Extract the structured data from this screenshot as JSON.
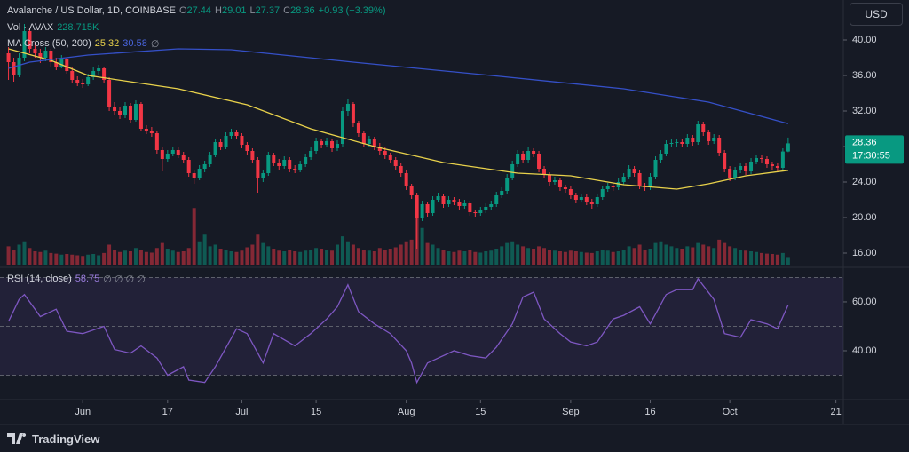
{
  "header": {
    "symbol": "Avalanche / US Dollar, 1D, COINBASE",
    "o": "O",
    "h": "H",
    "l": "L",
    "c": "C",
    "change": "+0.93 (+3.39%)",
    "volume_title": "Vol · AVAX",
    "volume": "228.715K",
    "ma_title": "MA Cross (50, 200)",
    "ma_empty": "∅",
    "rsi_title": "RSI (14, close)",
    "rsi_empty": "∅ ∅ ∅ ∅",
    "currency": "USD",
    "countdown": "17:30:55",
    "brand": "TradingView"
  },
  "chart_data": {
    "type": "candlestick",
    "up_color": "#089981",
    "down_color": "#f23645",
    "xlim": [
      -1.6,
      157.4
    ],
    "xticks": [
      {
        "value": 14,
        "label": "Jun"
      },
      {
        "value": 30,
        "label": "17"
      },
      {
        "value": 44,
        "label": "Jul"
      },
      {
        "value": 58,
        "label": "15"
      },
      {
        "value": 75,
        "label": "Aug"
      },
      {
        "value": 89,
        "label": "15"
      },
      {
        "value": 106,
        "label": "Sep"
      },
      {
        "value": 121,
        "label": "16"
      },
      {
        "value": 136,
        "label": "Oct"
      },
      {
        "value": 156,
        "label": "21"
      }
    ],
    "ylim": [
      14.5,
      44.5
    ],
    "yticks": [
      {
        "value": 40,
        "label": "40.00"
      },
      {
        "value": 36,
        "label": "36.00"
      },
      {
        "value": 32,
        "label": "32.00"
      },
      {
        "value": 28,
        "label": "28.00"
      },
      {
        "value": 24,
        "label": "24.00"
      },
      {
        "value": 20,
        "label": "20.00"
      },
      {
        "value": 16,
        "label": "16.00"
      }
    ],
    "candles": [
      [
        38.5,
        39.2,
        35.5,
        37.5
      ],
      [
        37.5,
        38,
        35.3,
        36
      ],
      [
        36,
        38.5,
        35.8,
        38
      ],
      [
        38,
        41.8,
        37.6,
        41
      ],
      [
        41,
        41.3,
        38.5,
        39
      ],
      [
        39,
        39.8,
        38,
        38.5
      ],
      [
        38.5,
        39,
        37.4,
        38
      ],
      [
        38,
        39.2,
        37.6,
        38.8
      ],
      [
        38.8,
        39,
        37,
        37.5
      ],
      [
        37.5,
        38,
        36.6,
        37
      ],
      [
        37,
        38.3,
        36.8,
        37.8
      ],
      [
        37.8,
        38,
        36.2,
        36.5
      ],
      [
        36.5,
        36.9,
        35.1,
        35.5
      ],
      [
        35.5,
        35.9,
        34.8,
        35.2
      ],
      [
        35.2,
        35.6,
        34.6,
        35
      ],
      [
        35,
        36.2,
        34.8,
        35.8
      ],
      [
        35.8,
        36.9,
        35.5,
        36.5
      ],
      [
        36.5,
        37.2,
        36.1,
        36.8
      ],
      [
        36.8,
        37,
        35.2,
        35.5
      ],
      [
        35.5,
        35.8,
        32,
        32.5
      ],
      [
        32.5,
        33,
        31.5,
        32
      ],
      [
        32,
        32.4,
        31.1,
        31.5
      ],
      [
        31.5,
        33,
        31.2,
        32.6
      ],
      [
        32.6,
        32.9,
        30.7,
        31
      ],
      [
        31,
        33.2,
        30.8,
        32.8
      ],
      [
        32.8,
        33,
        29.7,
        30
      ],
      [
        30,
        30.4,
        29.4,
        29.8
      ],
      [
        29.8,
        30.2,
        29.1,
        29.5
      ],
      [
        29.5,
        29.8,
        27.2,
        27.6
      ],
      [
        27.6,
        28,
        25.2,
        26.6
      ],
      [
        26.6,
        27.6,
        26.3,
        27.2
      ],
      [
        27.2,
        28,
        26.9,
        27.6
      ],
      [
        27.6,
        27.9,
        26.7,
        27.1
      ],
      [
        27.1,
        27.4,
        26.1,
        26.5
      ],
      [
        26.5,
        26.8,
        24.6,
        25
      ],
      [
        25,
        25.4,
        23.8,
        24.5
      ],
      [
        24.5,
        25.9,
        24.2,
        25.5
      ],
      [
        25.5,
        26.4,
        25.1,
        26
      ],
      [
        26,
        27.4,
        25.7,
        27
      ],
      [
        27,
        28.9,
        26.8,
        28.5
      ],
      [
        28.5,
        28.9,
        27.6,
        28
      ],
      [
        28,
        29.6,
        27.7,
        29.2
      ],
      [
        29.2,
        30,
        28.9,
        29.6
      ],
      [
        29.6,
        29.9,
        28.8,
        29.2
      ],
      [
        29.2,
        29.5,
        27.8,
        28.2
      ],
      [
        28.2,
        28.5,
        27.1,
        27.5
      ],
      [
        27.5,
        27.8,
        26.1,
        26.5
      ],
      [
        26.5,
        26.8,
        22.8,
        24.5
      ],
      [
        24.5,
        25.4,
        24,
        25
      ],
      [
        25,
        27.4,
        24.7,
        27
      ],
      [
        27,
        27.3,
        25.8,
        26.2
      ],
      [
        26.2,
        26.6,
        25.4,
        25.8
      ],
      [
        25.8,
        26.9,
        25.5,
        26.5
      ],
      [
        26.5,
        26.8,
        25.1,
        25.5
      ],
      [
        25.5,
        25.9,
        25,
        25.4
      ],
      [
        25.4,
        26.4,
        25.1,
        26
      ],
      [
        26,
        27.2,
        25.7,
        26.8
      ],
      [
        26.8,
        27.9,
        26.5,
        27.5
      ],
      [
        27.5,
        29,
        27.2,
        28.6
      ],
      [
        28.6,
        28.9,
        27.8,
        28.2
      ],
      [
        28.2,
        29,
        27.9,
        28.6
      ],
      [
        28.6,
        28.9,
        27.4,
        27.8
      ],
      [
        27.8,
        28.7,
        27.5,
        28.3
      ],
      [
        28.3,
        32.5,
        28,
        32
      ],
      [
        32,
        33.3,
        31.4,
        32.8
      ],
      [
        32.8,
        33,
        30.2,
        30.6
      ],
      [
        30.6,
        30.9,
        29.1,
        29.5
      ],
      [
        29.5,
        29.8,
        27.9,
        28.3
      ],
      [
        28.3,
        29.2,
        28,
        28.8
      ],
      [
        28.8,
        29.1,
        27.6,
        28
      ],
      [
        28,
        28.4,
        27.1,
        27.5
      ],
      [
        27.5,
        27.9,
        26.6,
        27
      ],
      [
        27,
        27.3,
        26.1,
        26.5
      ],
      [
        26.5,
        26.8,
        25.4,
        25.8
      ],
      [
        25.8,
        26.1,
        24.6,
        25
      ],
      [
        25,
        25.3,
        23.1,
        23.5
      ],
      [
        23.5,
        23.8,
        22.1,
        22.5
      ],
      [
        22.5,
        22.8,
        16.5,
        20
      ],
      [
        20,
        21.9,
        19.6,
        21.5
      ],
      [
        21.5,
        21.8,
        20.1,
        20.5
      ],
      [
        20.5,
        22.4,
        20.2,
        22
      ],
      [
        22,
        22.8,
        21.7,
        22.4
      ],
      [
        22.4,
        22.7,
        21.1,
        21.5
      ],
      [
        21.5,
        22.4,
        21.2,
        22
      ],
      [
        22,
        22.3,
        21.4,
        21.8
      ],
      [
        21.8,
        22.1,
        20.9,
        21.3
      ],
      [
        21.3,
        22,
        21,
        21.6
      ],
      [
        21.6,
        21.9,
        20.2,
        20.6
      ],
      [
        20.6,
        20.9,
        20.1,
        20.5
      ],
      [
        20.5,
        21.2,
        20.2,
        20.8
      ],
      [
        20.8,
        21.6,
        20.5,
        21.2
      ],
      [
        21.2,
        21.9,
        20.9,
        21.5
      ],
      [
        21.5,
        22.9,
        21.2,
        22.5
      ],
      [
        22.5,
        23.4,
        22.2,
        23
      ],
      [
        23,
        24.9,
        22.7,
        24.5
      ],
      [
        24.5,
        26.4,
        24.2,
        26
      ],
      [
        26,
        27.6,
        25.7,
        27.2
      ],
      [
        27.2,
        27.5,
        26.1,
        26.5
      ],
      [
        26.5,
        28,
        26.2,
        27.5
      ],
      [
        27.5,
        27.8,
        26.8,
        27.2
      ],
      [
        27.2,
        27.5,
        25.1,
        25.5
      ],
      [
        25.5,
        25.8,
        24.4,
        24.8
      ],
      [
        24.8,
        25.1,
        23.6,
        24
      ],
      [
        24,
        24.6,
        23.7,
        24.2
      ],
      [
        24.2,
        24.5,
        23,
        23.4
      ],
      [
        23.4,
        23.7,
        22.8,
        23.2
      ],
      [
        23.2,
        23.5,
        22.1,
        22.5
      ],
      [
        22.5,
        22.8,
        21.6,
        22
      ],
      [
        22,
        22.7,
        21.7,
        22.3
      ],
      [
        22.3,
        22.6,
        21.4,
        21.8
      ],
      [
        21.8,
        22.1,
        21,
        21.5
      ],
      [
        21.5,
        22.7,
        21.2,
        22.3
      ],
      [
        22.3,
        23.6,
        22,
        23.2
      ],
      [
        23.2,
        23.9,
        22.9,
        23.5
      ],
      [
        23.5,
        23.8,
        23,
        23.4
      ],
      [
        23.4,
        24.4,
        23.1,
        24
      ],
      [
        24,
        25,
        23.7,
        24.6
      ],
      [
        24.6,
        25.9,
        24.3,
        25.5
      ],
      [
        25.5,
        25.8,
        24.6,
        25
      ],
      [
        25,
        25.3,
        23.2,
        23.6
      ],
      [
        23.6,
        23.9,
        23,
        23.4
      ],
      [
        23.4,
        25,
        23.1,
        24.6
      ],
      [
        24.6,
        26.9,
        24.3,
        26.5
      ],
      [
        26.5,
        27.6,
        26.2,
        27.2
      ],
      [
        27.2,
        28.7,
        26.9,
        28.3
      ],
      [
        28.3,
        28.8,
        27.9,
        28.4
      ],
      [
        28.4,
        28.9,
        28,
        28.5
      ],
      [
        28.5,
        28.8,
        27.9,
        28.3
      ],
      [
        28.3,
        29.4,
        28,
        29
      ],
      [
        29,
        29.3,
        28.1,
        28.5
      ],
      [
        28.5,
        30.9,
        28.2,
        30.5
      ],
      [
        30.5,
        30.8,
        29.2,
        29.6
      ],
      [
        29.6,
        29.9,
        28.2,
        28.6
      ],
      [
        28.6,
        29.4,
        28.3,
        29
      ],
      [
        29,
        29.3,
        26.9,
        27.3
      ],
      [
        27.3,
        27.6,
        25.1,
        25.5
      ],
      [
        25.5,
        25.8,
        24.1,
        24.5
      ],
      [
        24.5,
        25.7,
        24.2,
        25.3
      ],
      [
        25.3,
        26.2,
        25,
        25.8
      ],
      [
        25.8,
        26.1,
        24.8,
        25.2
      ],
      [
        25.2,
        26.7,
        24.9,
        26.3
      ],
      [
        26.3,
        27.1,
        26,
        26.7
      ],
      [
        26.7,
        27,
        26.2,
        26.6
      ],
      [
        26.6,
        26.9,
        25.6,
        26
      ],
      [
        26,
        26.3,
        25.4,
        25.8
      ],
      [
        25.8,
        26.1,
        25.2,
        25.6
      ],
      [
        25.6,
        27.8,
        25.3,
        27.44
      ],
      [
        27.44,
        29.01,
        27.37,
        28.36
      ]
    ],
    "volume": [
      550,
      450,
      600,
      700,
      500,
      400,
      380,
      420,
      350,
      330,
      300,
      320,
      300,
      280,
      260,
      300,
      320,
      280,
      350,
      600,
      450,
      380,
      420,
      400,
      500,
      450,
      380,
      360,
      500,
      650,
      480,
      420,
      380,
      400,
      500,
      1700,
      700,
      900,
      550,
      600,
      480,
      450,
      400,
      380,
      420,
      520,
      600,
      900,
      650,
      550,
      480,
      420,
      400,
      450,
      400,
      380,
      420,
      450,
      500,
      480,
      450,
      420,
      600,
      850,
      700,
      600,
      500,
      450,
      420,
      400,
      500,
      450,
      480,
      520,
      600,
      700,
      750,
      2000,
      1100,
      650,
      600,
      500,
      450,
      400,
      380,
      420,
      400,
      450,
      380,
      360,
      400,
      420,
      480,
      550,
      650,
      700,
      600,
      550,
      500,
      480,
      550,
      500,
      450,
      420,
      400,
      380,
      420,
      400,
      380,
      360,
      350,
      400,
      450,
      420,
      380,
      400,
      450,
      550,
      500,
      600,
      450,
      480,
      650,
      700,
      600,
      550,
      500,
      480,
      550,
      520,
      650,
      600,
      550,
      500,
      750,
      650,
      550,
      500,
      450,
      420,
      400,
      380,
      350,
      330,
      320,
      300,
      350,
      228.715
    ],
    "ma_lines": [
      {
        "color": "#e9d24b",
        "x": [
          0,
          8,
          15,
          32,
          45,
          57,
          69,
          82,
          96,
          106,
          116,
          126,
          132,
          139,
          147
        ],
        "values": [
          39,
          37.7,
          36,
          34.5,
          32.7,
          30,
          28,
          26.2,
          25,
          24.7,
          23.7,
          23.2,
          23.8,
          24.7,
          25.32
        ]
      },
      {
        "color": "#3550c8",
        "x": [
          0,
          4,
          15,
          32,
          42,
          65,
          91,
          116,
          132,
          147
        ],
        "values": [
          36.8,
          37.5,
          38.3,
          39,
          38.9,
          37.5,
          36,
          34.5,
          33,
          30.58
        ]
      }
    ],
    "rsi": {
      "color": "#7e57c2",
      "ylim": [
        20,
        73.8
      ],
      "yticks": [
        {
          "value": 60,
          "label": "60.00"
        },
        {
          "value": 40,
          "label": "40.00"
        }
      ],
      "levels": [
        70,
        50,
        30
      ],
      "x": [
        0,
        2,
        3,
        6,
        9,
        11,
        14,
        18,
        20,
        23,
        25,
        28,
        30,
        33,
        34,
        37,
        39,
        43,
        45,
        48,
        50,
        54,
        57,
        60,
        62,
        64,
        66,
        69,
        72,
        75,
        76,
        77,
        79,
        84,
        87,
        90,
        92,
        95,
        97,
        99,
        101,
        104,
        106,
        109,
        111,
        114,
        116,
        119,
        121,
        124,
        126,
        129,
        130,
        133,
        135,
        138,
        140,
        143,
        145,
        147
      ],
      "values": [
        52,
        61,
        63,
        54,
        57,
        48,
        47,
        50,
        40.5,
        39,
        42,
        37,
        30,
        33.5,
        28,
        27,
        33.5,
        49,
        47,
        35,
        47,
        42,
        47,
        53,
        58,
        67,
        56,
        51,
        47,
        40,
        35,
        27,
        35,
        40,
        38,
        37,
        41.5,
        51,
        62,
        64,
        53,
        47,
        43.6,
        42,
        43.6,
        53,
        54.5,
        58,
        51,
        63,
        65,
        65,
        69.5,
        61,
        47,
        45.5,
        52.7,
        51,
        49,
        58.75
      ]
    }
  }
}
